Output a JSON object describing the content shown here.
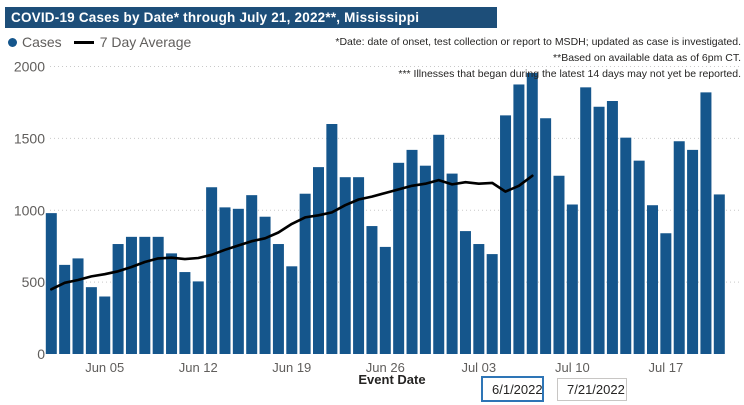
{
  "title": "COVID-19 Cases by Date* through July 21, 2022**, Mississippi",
  "legend": {
    "cases_label": "Cases",
    "avg_label": "7 Day Average"
  },
  "annotations": [
    "*Date: date of onset, test collection or report to MSDH; updated as case is investigated.",
    "**Based on available data as of 6pm CT.",
    "*** Illnesses that began during the latest 14 days may not yet be reported."
  ],
  "controls": {
    "start_date": "6/1/2022",
    "end_date": "7/21/2022"
  },
  "chart_data": {
    "type": "bar",
    "title": "COVID-19 Cases by Date* through July 21, 2022**, Mississippi",
    "xlabel": "Event Date",
    "ylabel": "",
    "ylim": [
      0,
      2000
    ],
    "yticks": [
      0,
      500,
      1000,
      1500,
      2000
    ],
    "grid": "dotted-horizontal",
    "legend_position": "top-left",
    "x_ticks": [
      {
        "label": "Jun 05",
        "index": 4
      },
      {
        "label": "Jun 12",
        "index": 11
      },
      {
        "label": "Jun 19",
        "index": 18
      },
      {
        "label": "Jun 26",
        "index": 25
      },
      {
        "label": "Jul 03",
        "index": 32
      },
      {
        "label": "Jul 10",
        "index": 39
      },
      {
        "label": "Jul 17",
        "index": 46
      }
    ],
    "categories": [
      "Jun 1",
      "Jun 2",
      "Jun 3",
      "Jun 4",
      "Jun 5",
      "Jun 6",
      "Jun 7",
      "Jun 8",
      "Jun 9",
      "Jun 10",
      "Jun 11",
      "Jun 12",
      "Jun 13",
      "Jun 14",
      "Jun 15",
      "Jun 16",
      "Jun 17",
      "Jun 18",
      "Jun 19",
      "Jun 20",
      "Jun 21",
      "Jun 22",
      "Jun 23",
      "Jun 24",
      "Jun 25",
      "Jun 26",
      "Jun 27",
      "Jun 28",
      "Jun 29",
      "Jun 30",
      "Jul 1",
      "Jul 2",
      "Jul 3",
      "Jul 4",
      "Jul 5",
      "Jul 6",
      "Jul 7",
      "Jul 8",
      "Jul 9",
      "Jul 10",
      "Jul 11",
      "Jul 12",
      "Jul 13",
      "Jul 14",
      "Jul 15",
      "Jul 16",
      "Jul 17",
      "Jul 18",
      "Jul 19",
      "Jul 20",
      "Jul 21"
    ],
    "series": [
      {
        "name": "Cases",
        "type": "bar",
        "values": [
          980,
          620,
          665,
          465,
          400,
          765,
          815,
          815,
          815,
          700,
          570,
          505,
          1160,
          1020,
          1010,
          1105,
          955,
          765,
          610,
          1115,
          1300,
          1600,
          1230,
          1230,
          890,
          745,
          1330,
          1420,
          1310,
          1525,
          1255,
          855,
          765,
          695,
          1660,
          1875,
          1955,
          1640,
          1240,
          1040,
          1855,
          1720,
          1760,
          1505,
          1345,
          1035,
          840,
          1480,
          1420,
          1820,
          1110
        ]
      },
      {
        "name": "7 Day Average",
        "type": "line",
        "note": "line ends Jul 7 (latest 14 days not averaged)",
        "values": [
          450,
          495,
          515,
          540,
          555,
          575,
          605,
          640,
          665,
          670,
          660,
          668,
          690,
          725,
          755,
          785,
          805,
          845,
          905,
          950,
          965,
          985,
          1035,
          1075,
          1095,
          1120,
          1145,
          1170,
          1185,
          1210,
          1180,
          1195,
          1185,
          1190,
          1130,
          1170,
          1240
        ]
      }
    ],
    "colors": {
      "bar": "#15568c",
      "line": "#000000",
      "title_bg": "#1d4e79",
      "axis_text": "#605e5c",
      "gridline": "#c9c9c9"
    }
  }
}
